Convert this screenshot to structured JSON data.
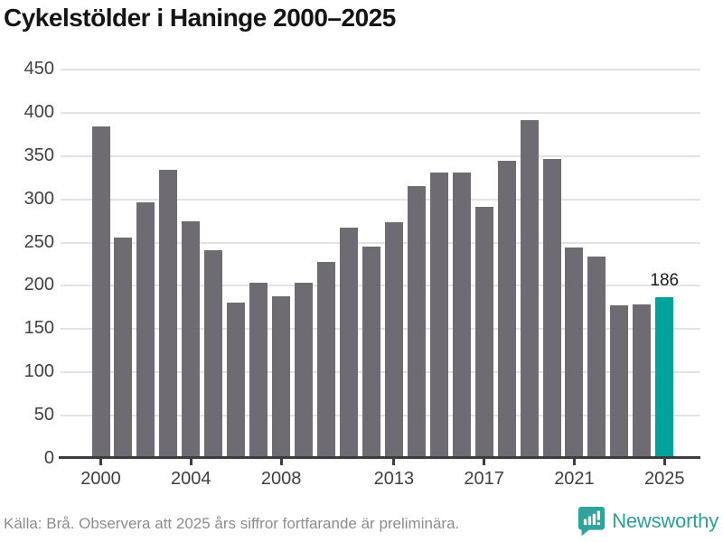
{
  "title": "Cykelstölder i Haninge 2000–2025",
  "footer": {
    "source_note": "Källa: Brå. Observera att 2025 års siffror fortfarande är preliminära."
  },
  "branding": {
    "name": "Newsworthy",
    "logo_icon": "bar-chart-speech-bubble-icon",
    "logo_color": "#2fa39c"
  },
  "chart_data": {
    "type": "bar",
    "title": "Cykelstölder i Haninge 2000–2025",
    "categories": [
      2000,
      2001,
      2002,
      2003,
      2004,
      2005,
      2006,
      2007,
      2008,
      2009,
      2010,
      2011,
      2012,
      2013,
      2014,
      2015,
      2016,
      2017,
      2018,
      2019,
      2020,
      2021,
      2022,
      2023,
      2024,
      2025
    ],
    "values": [
      383,
      255,
      296,
      333,
      274,
      240,
      180,
      203,
      187,
      203,
      227,
      266,
      244,
      273,
      314,
      330,
      330,
      290,
      344,
      390,
      346,
      243,
      233,
      176,
      177,
      186
    ],
    "xlabel": "",
    "ylabel": "",
    "ylim": [
      0,
      450
    ],
    "y_ticks": [
      0,
      50,
      100,
      150,
      200,
      250,
      300,
      350,
      400,
      450
    ],
    "x_tick_years": [
      2000,
      2004,
      2008,
      2013,
      2017,
      2021,
      2025
    ],
    "x_tick_labels": [
      "2000",
      "2004",
      "2008",
      "2013",
      "2017",
      "2021",
      "2025"
    ],
    "grid": true,
    "legend_position": "none",
    "bar_color": "#6e6b72",
    "highlight_year": 2025,
    "highlight_color": "#00a39b",
    "highlight_value_label": "186"
  }
}
